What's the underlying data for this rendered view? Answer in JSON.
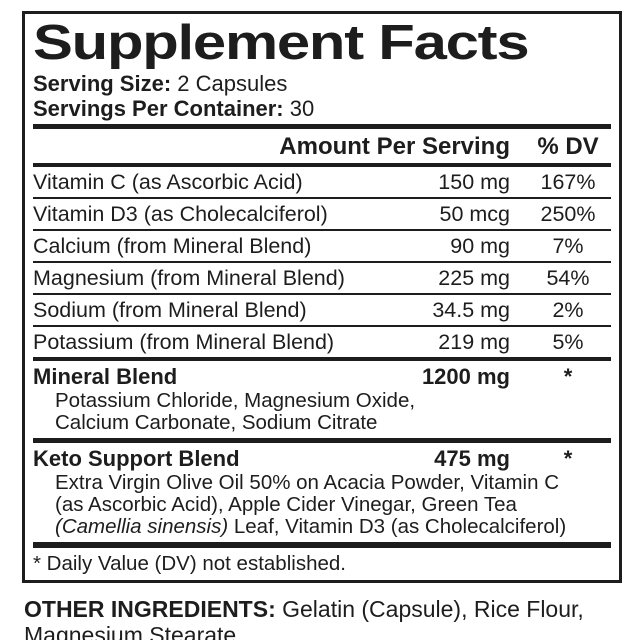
{
  "colors": {
    "ink": "#1d1d1d",
    "background": "#ffffff"
  },
  "label": {
    "title": "Supplement Facts",
    "serving_size_label": "Serving Size:",
    "serving_size_value": " 2 Capsules",
    "servings_label": "Servings Per Container:",
    "servings_value": " 30",
    "header": {
      "amount": "Amount Per Serving",
      "dv": "% DV"
    },
    "nutrients": [
      {
        "name": "Vitamin C (as Ascorbic Acid)",
        "amount": "150 mg",
        "dv": "167%"
      },
      {
        "name": "Vitamin D3 (as Cholecalciferol)",
        "amount": "50 mcg",
        "dv": "250%"
      },
      {
        "name": "Calcium (from Mineral Blend)",
        "amount": "90 mg",
        "dv": "7%"
      },
      {
        "name": "Magnesium (from Mineral Blend)",
        "amount": "225 mg",
        "dv": "54%"
      },
      {
        "name": "Sodium (from Mineral Blend)",
        "amount": "34.5 mg",
        "dv": "2%"
      },
      {
        "name": "Potassium (from Mineral Blend)",
        "amount": "219 mg",
        "dv": "5%"
      }
    ],
    "blends": [
      {
        "name": "Mineral Blend",
        "amount": "1200 mg",
        "dv": "*",
        "lines": [
          "Potassium Chloride, Magnesium Oxide,",
          "Calcium Carbonate, Sodium Citrate"
        ]
      },
      {
        "name": "Keto Support Blend",
        "amount": "475 mg",
        "dv": "*",
        "lines": [
          "Extra Virgin Olive Oil 50% on Acacia Powder, Vitamin C",
          "(as Ascorbic Acid), Apple Cider Vinegar, Green Tea"
        ],
        "line3_italic": "(Camellia sinensis)",
        "line3_rest": " Leaf, Vitamin D3 (as Cholecalciferol)"
      }
    ],
    "footnote": "* Daily Value (DV) not established.",
    "other_ingredients_label": "OTHER INGREDIENTS:",
    "other_ingredients_value": " Gelatin (Capsule), Rice Flour, Magnesium Stearate."
  }
}
